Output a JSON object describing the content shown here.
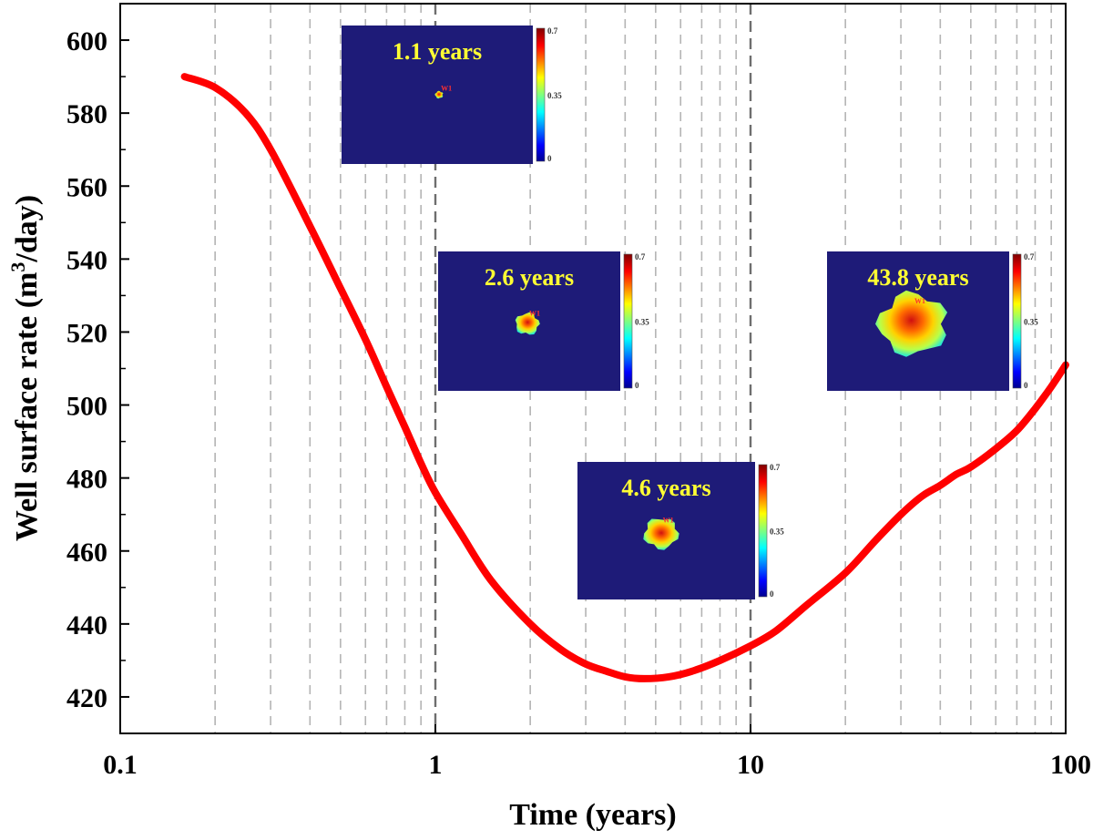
{
  "chart_data": {
    "type": "line",
    "xlabel": "Time (years)",
    "ylabel_main": "Well surface rate (m",
    "ylabel_sup": "3",
    "ylabel_tail": "/day)",
    "xscale": "log",
    "xlim": [
      0.1,
      100
    ],
    "ylim": [
      410,
      610
    ],
    "x_ticks": [
      0.1,
      1,
      10,
      100
    ],
    "x_tick_labels": [
      "0.1",
      "1",
      "10",
      "100"
    ],
    "y_ticks": [
      420,
      440,
      460,
      480,
      500,
      520,
      540,
      560,
      580,
      600
    ],
    "y_tick_labels": [
      "420",
      "440",
      "460",
      "480",
      "500",
      "520",
      "540",
      "560",
      "580",
      "600"
    ],
    "grid": "vertical dashed at minor log ticks",
    "series": [
      {
        "color": "#ff0000",
        "x": [
          0.16,
          0.2,
          0.25,
          0.3,
          0.4,
          0.5,
          0.6,
          0.7,
          0.8,
          0.9,
          1.0,
          1.2,
          1.5,
          2.0,
          2.5,
          3.0,
          3.5,
          4.0,
          4.6,
          5.5,
          6.5,
          8.0,
          10.0,
          12,
          15,
          20,
          25,
          30,
          35,
          40,
          45,
          50,
          60,
          70,
          80,
          90,
          100
        ],
        "y": [
          590,
          587,
          580,
          570,
          549,
          532,
          518,
          505,
          494,
          484,
          476,
          465,
          452,
          440,
          433,
          429,
          427,
          425.5,
          425,
          425.5,
          427,
          430,
          434,
          438,
          445,
          454,
          463,
          470,
          475,
          478,
          481,
          483,
          488,
          493,
          499,
          505,
          511
        ]
      }
    ],
    "insets": [
      {
        "label": "1.1 years",
        "colorbar": [
          "0.7",
          "0.35",
          "0"
        ],
        "well": "W1",
        "plume": "tiny"
      },
      {
        "label": "2.6 years",
        "colorbar": [
          "0.7",
          "0.35",
          "0"
        ],
        "well": "W1",
        "plume": "small"
      },
      {
        "label": "4.6 years",
        "colorbar": [
          "0.7",
          "0.35",
          "0"
        ],
        "well": "W1",
        "plume": "medium"
      },
      {
        "label": "43.8 years",
        "colorbar": [
          "0.7",
          "0.35",
          "0"
        ],
        "well": "W1",
        "plume": "large"
      }
    ],
    "colors": {
      "inset_bg": "#1e1b78",
      "inset_label": "#ffff33",
      "curve": "#ff0000",
      "grid": "#b4b4b4",
      "major_grid": "#6e6e6e"
    }
  }
}
